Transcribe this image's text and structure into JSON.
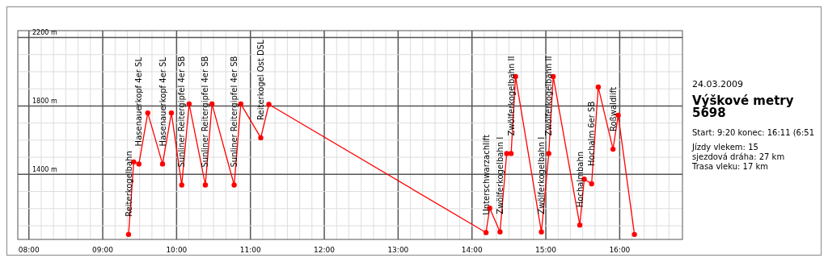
{
  "chart_data": {
    "type": "line",
    "title": "Výškové metry 5698",
    "subtitle": "24.03.2009",
    "annotations": [
      "Start: 9:20  konec: 16:11 (6:51",
      "Jízdy vlekem: 15",
      "sjezdová dráha: 27 km",
      "Trasa vleku: 17 km",
      {
        "text": "Reiterkogelbahn",
        "x": 9.35,
        "y": 1049
      },
      {
        "text": "Hasenauerkopf 4er SL",
        "x": 9.49,
        "y": 1461
      },
      {
        "text": "Hasenauerkopf 4er SL",
        "x": 9.81,
        "y": 1461
      },
      {
        "text": "Sunliner Reitergipfel 4er SB",
        "x": 10.07,
        "y": 1338
      },
      {
        "text": "Sunliner Reitergipfel 4er SB",
        "x": 10.39,
        "y": 1338
      },
      {
        "text": "Sunliner Reitergipfel 4er SB",
        "x": 10.78,
        "y": 1338
      },
      {
        "text": "Reiterkogel Ost DSL",
        "x": 11.14,
        "y": 1614
      },
      {
        "text": "Unterschwarzachlift",
        "x": 14.19,
        "y": 1060
      },
      {
        "text": "Zwölferkogelbahn I",
        "x": 14.38,
        "y": 1064
      },
      {
        "text": "Zwölferkogelbahn II",
        "x": 14.53,
        "y": 1522
      },
      {
        "text": "Zwölferkogelbahn I",
        "x": 14.94,
        "y": 1064
      },
      {
        "text": "Zwölferkogelbahn II",
        "x": 15.04,
        "y": 1522
      },
      {
        "text": "Hochalmbahn",
        "x": 15.46,
        "y": 1104
      },
      {
        "text": "Hochalm 6er SB",
        "x": 15.62,
        "y": 1345
      },
      {
        "text": "Roßwaldlift",
        "x": 15.91,
        "y": 1547
      }
    ],
    "x": [
      9.35,
      9.42,
      9.49,
      9.61,
      9.81,
      9.93,
      10.07,
      10.17,
      10.39,
      10.48,
      10.78,
      10.87,
      11.14,
      11.25,
      14.19,
      14.24,
      14.38,
      14.47,
      14.53,
      14.59,
      14.94,
      15.04,
      15.1,
      15.46,
      15.52,
      15.62,
      15.71,
      15.91,
      15.98,
      16.2
    ],
    "series": [
      {
        "color": "#ff0000",
        "values": [
          1049,
          1473,
          1461,
          1759,
          1461,
          1759,
          1338,
          1812,
          1338,
          1812,
          1338,
          1812,
          1614,
          1809,
          1060,
          1203,
          1064,
          1522,
          1522,
          1972,
          1064,
          1522,
          1972,
          1104,
          1372,
          1345,
          1910,
          1547,
          1746,
          1049
        ]
      }
    ],
    "xlim": [
      7.85,
      16.85
    ],
    "xticks": [
      {
        "value": 8,
        "label": "08:00"
      },
      {
        "value": 8.167,
        "label": null
      },
      {
        "value": 8.333,
        "label": null
      },
      {
        "value": 8.5,
        "label": null
      },
      {
        "value": 8.667,
        "label": null
      },
      {
        "value": 8.833,
        "label": null
      },
      {
        "value": 9,
        "label": "09:00"
      },
      {
        "value": 9.167,
        "label": null
      },
      {
        "value": 9.333,
        "label": null
      },
      {
        "value": 9.5,
        "label": null
      },
      {
        "value": 9.667,
        "label": null
      },
      {
        "value": 9.833,
        "label": null
      },
      {
        "value": 10,
        "label": "10:00"
      },
      {
        "value": 10.167,
        "label": null
      },
      {
        "value": 10.333,
        "label": null
      },
      {
        "value": 10.5,
        "label": null
      },
      {
        "value": 10.667,
        "label": null
      },
      {
        "value": 10.833,
        "label": null
      },
      {
        "value": 11,
        "label": "11:00"
      },
      {
        "value": 11.167,
        "label": null
      },
      {
        "value": 11.333,
        "label": null
      },
      {
        "value": 11.5,
        "label": null
      },
      {
        "value": 11.667,
        "label": null
      },
      {
        "value": 11.833,
        "label": null
      },
      {
        "value": 12,
        "label": "12:00"
      },
      {
        "value": 12.167,
        "label": null
      },
      {
        "value": 12.333,
        "label": null
      },
      {
        "value": 12.5,
        "label": null
      },
      {
        "value": 12.667,
        "label": null
      },
      {
        "value": 12.833,
        "label": null
      },
      {
        "value": 13,
        "label": "13:00"
      },
      {
        "value": 13.167,
        "label": null
      },
      {
        "value": 13.333,
        "label": null
      },
      {
        "value": 13.5,
        "label": null
      },
      {
        "value": 13.667,
        "label": null
      },
      {
        "value": 13.833,
        "label": null
      },
      {
        "value": 14,
        "label": "14:00"
      },
      {
        "value": 14.167,
        "label": null
      },
      {
        "value": 14.333,
        "label": null
      },
      {
        "value": 14.5,
        "label": null
      },
      {
        "value": 14.667,
        "label": null
      },
      {
        "value": 14.833,
        "label": null
      },
      {
        "value": 15,
        "label": "15:00"
      },
      {
        "value": 15.167,
        "label": null
      },
      {
        "value": 15.333,
        "label": null
      },
      {
        "value": 15.5,
        "label": null
      },
      {
        "value": 15.667,
        "label": null
      },
      {
        "value": 15.833,
        "label": null
      },
      {
        "value": 16,
        "label": "16:00"
      },
      {
        "value": 16.167,
        "label": null
      },
      {
        "value": 16.333,
        "label": null
      },
      {
        "value": 16.5,
        "label": null
      },
      {
        "value": 16.667,
        "label": null
      }
    ],
    "ylim": [
      1020,
      2240
    ],
    "yticks": [
      {
        "value": 1100,
        "label": null
      },
      {
        "value": 1200,
        "label": null
      },
      {
        "value": 1300,
        "label": null
      },
      {
        "value": 1400,
        "label": "1400 m"
      },
      {
        "value": 1500,
        "label": null
      },
      {
        "value": 1600,
        "label": null
      },
      {
        "value": 1700,
        "label": null
      },
      {
        "value": 1800,
        "label": "1800 m"
      },
      {
        "value": 1900,
        "label": null
      },
      {
        "value": 2000,
        "label": null
      },
      {
        "value": 2100,
        "label": null
      },
      {
        "value": 2200,
        "label": "2200 m"
      }
    ],
    "grid": true,
    "marker": "circle",
    "line_style": "solid"
  }
}
